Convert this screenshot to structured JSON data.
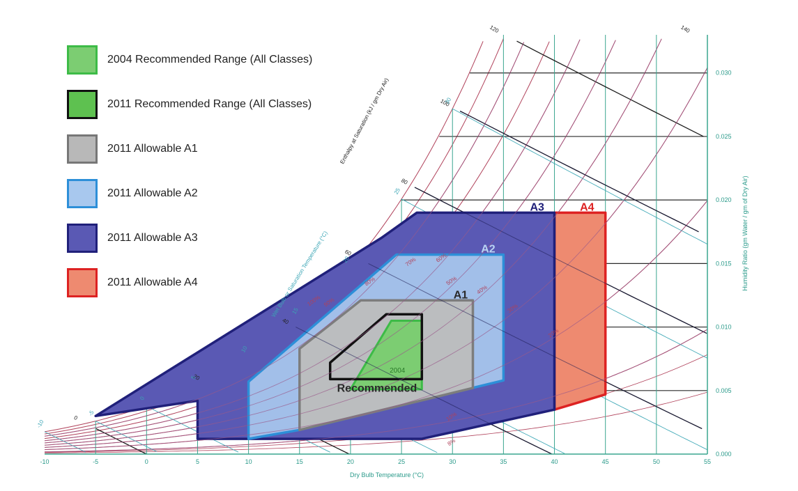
{
  "chart_data": {
    "type": "area",
    "title": "",
    "xlabel": "Dry Bulb Temperature (°C)",
    "ylabel": "Humidity Ratio (gm Water / gm of Dry Air)",
    "xlim": [
      -10,
      55
    ],
    "ylim": [
      0.0,
      0.033
    ],
    "x_ticks": [
      "-10",
      "-5",
      "0",
      "5",
      "10",
      "15",
      "20",
      "25",
      "30",
      "35",
      "40",
      "45",
      "50",
      "55"
    ],
    "y_ticks": [
      "0.000",
      "0.005",
      "0.010",
      "0.015",
      "0.020",
      "0.025",
      "0.030"
    ],
    "enthalpy_label": "Enthalpy at Saturation (kJ / gm Dry Air)",
    "enthalpy_ticks": [
      "0",
      "20",
      "40",
      "60",
      "80",
      "100",
      "120",
      "140"
    ],
    "wetbulb_label": "Wet Bulb or Saturation Temperature (°C)",
    "wetbulb_ticks": [
      "-10",
      "-5",
      "0",
      "5",
      "10",
      "15",
      "20",
      "25",
      "30",
      "35"
    ],
    "rh_labels": [
      "100%",
      "90%",
      "80%",
      "70%",
      "60%",
      "50%",
      "40%",
      "30%",
      "20%",
      "10%",
      "8%"
    ],
    "legend": [
      {
        "label": "2004 Recommended Range (All Classes)",
        "fill": "#7ccd72",
        "stroke": "#3dbb47"
      },
      {
        "label": "2011 Recommended Range (All Classes)",
        "fill": "#5ec150",
        "stroke": "#111111"
      },
      {
        "label": "2011 Allowable A1",
        "fill": "#b8b8b8",
        "stroke": "#777777"
      },
      {
        "label": "2011 Allowable A2",
        "fill": "#a8c8ee",
        "stroke": "#2d8fd8"
      },
      {
        "label": "2011 Allowable A3",
        "fill": "#5a59b4",
        "stroke": "#20207a"
      },
      {
        "label": "2011 Allowable A4",
        "fill": "#ee8a70",
        "stroke": "#dd2222"
      }
    ],
    "regions": [
      {
        "name": "A4",
        "label": "A4",
        "points": [
          [
            40,
            0.0035
          ],
          [
            45,
            0.0047
          ],
          [
            45,
            0.019
          ],
          [
            40,
            0.019
          ]
        ]
      },
      {
        "name": "A3",
        "label": "A3",
        "points": [
          [
            5,
            0.0012
          ],
          [
            27,
            0.0012
          ],
          [
            40,
            0.0035
          ],
          [
            40,
            0.019
          ],
          [
            26.5,
            0.019
          ],
          [
            23,
            0.017
          ],
          [
            -5,
            0.003
          ],
          [
            5,
            0.0042
          ]
        ]
      },
      {
        "name": "A2",
        "label": "A2",
        "points": [
          [
            10,
            0.0012
          ],
          [
            15,
            0.0019
          ],
          [
            35,
            0.0058
          ],
          [
            35,
            0.0157
          ],
          [
            24.5,
            0.0157
          ],
          [
            10,
            0.0057
          ]
        ]
      },
      {
        "name": "A1",
        "label": "A1",
        "points": [
          [
            15,
            0.0019
          ],
          [
            32,
            0.0052
          ],
          [
            32,
            0.0121
          ],
          [
            21,
            0.0121
          ],
          [
            15,
            0.0083
          ]
        ]
      },
      {
        "name": "2004 Recommended",
        "label": "2004",
        "points": [
          [
            20,
            0.0051
          ],
          [
            27,
            0.0051
          ],
          [
            27,
            0.0105
          ],
          [
            24,
            0.0105
          ]
        ]
      },
      {
        "name": "2011 Recommended",
        "label": "Recommended",
        "points": [
          [
            18,
            0.0059
          ],
          [
            27,
            0.0059
          ],
          [
            27,
            0.011
          ],
          [
            23.5,
            0.011
          ],
          [
            18,
            0.0072
          ]
        ]
      }
    ]
  }
}
